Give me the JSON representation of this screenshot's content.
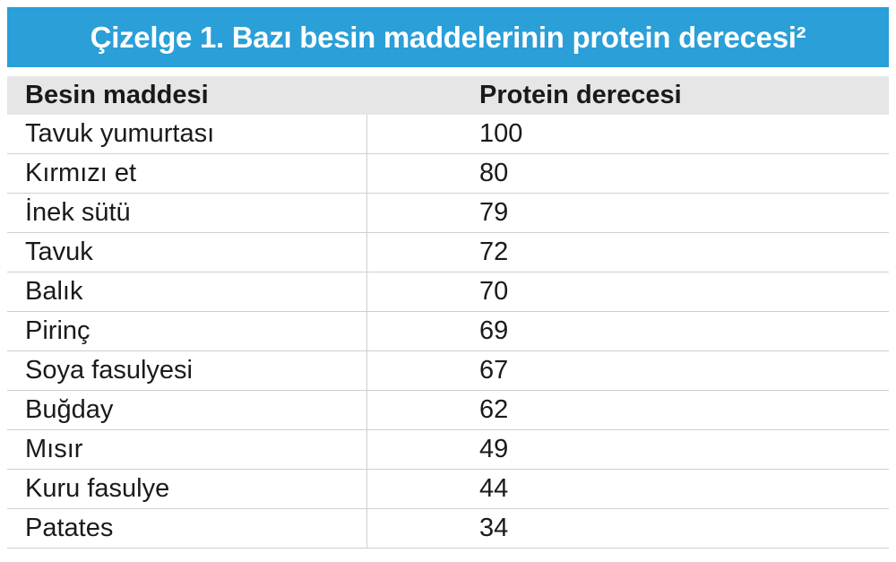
{
  "header": {
    "title": "Çizelge 1. Bazı besin maddelerinin protein derecesi²"
  },
  "table": {
    "columns": [
      "Besin maddesi",
      "Protein derecesi"
    ],
    "rows": [
      [
        "Tavuk yumurtası",
        100
      ],
      [
        "Kırmızı et",
        80
      ],
      [
        "İnek sütü",
        79
      ],
      [
        "Tavuk",
        72
      ],
      [
        "Balık",
        70
      ],
      [
        "Pirinç",
        69
      ],
      [
        "Soya fasulyesi",
        67
      ],
      [
        "Buğday",
        62
      ],
      [
        "Mısır",
        49
      ],
      [
        "Kuru fasulye",
        44
      ],
      [
        "Patates",
        34
      ]
    ]
  }
}
